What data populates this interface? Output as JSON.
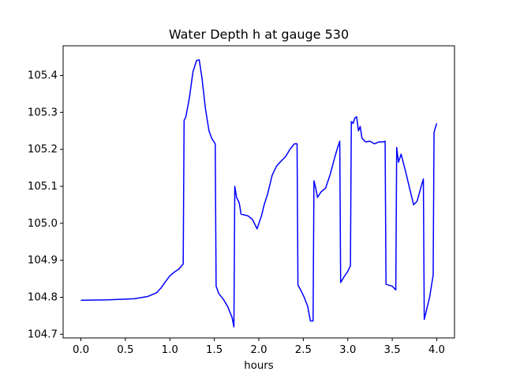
{
  "chart_data": {
    "type": "line",
    "title": "Water Depth h at gauge 530",
    "xlabel": "hours",
    "ylabel": "",
    "xlim": [
      -0.2,
      4.2
    ],
    "ylim": [
      104.69,
      105.48
    ],
    "grid": false,
    "x_ticks": [
      0.0,
      0.5,
      1.0,
      1.5,
      2.0,
      2.5,
      3.0,
      3.5,
      4.0
    ],
    "x_tick_labels": [
      "0.0",
      "0.5",
      "1.0",
      "1.5",
      "2.0",
      "2.5",
      "3.0",
      "3.5",
      "4.0"
    ],
    "y_ticks": [
      104.7,
      104.8,
      104.9,
      105.0,
      105.1,
      105.2,
      105.3,
      105.4
    ],
    "y_tick_labels": [
      "104.7",
      "104.8",
      "104.9",
      "105.0",
      "105.1",
      "105.2",
      "105.3",
      "105.4"
    ],
    "line_color": "#0000ff",
    "series": [
      {
        "x": [
          0.0,
          0.3,
          0.6,
          0.75,
          0.85,
          0.9,
          0.95,
          1.0,
          1.05,
          1.1,
          1.15,
          1.16,
          1.18,
          1.22,
          1.26,
          1.3,
          1.33,
          1.36,
          1.4,
          1.44,
          1.47,
          1.51,
          1.52,
          1.55,
          1.6,
          1.65,
          1.7,
          1.72,
          1.73,
          1.75,
          1.78,
          1.8,
          1.83,
          1.88,
          1.93,
          1.98,
          2.03,
          2.06,
          2.1,
          2.15,
          2.2,
          2.25,
          2.3,
          2.35,
          2.4,
          2.43,
          2.44,
          2.47,
          2.51,
          2.55,
          2.58,
          2.61,
          2.62,
          2.64,
          2.66,
          2.7,
          2.75,
          2.8,
          2.85,
          2.88,
          2.91,
          2.92,
          2.96,
          3.0,
          3.03,
          3.04,
          3.06,
          3.08,
          3.1,
          3.12,
          3.14,
          3.16,
          3.2,
          3.25,
          3.3,
          3.35,
          3.4,
          3.42,
          3.43,
          3.5,
          3.54,
          3.55,
          3.57,
          3.6,
          3.65,
          3.7,
          3.74,
          3.78,
          3.82,
          3.85,
          3.86,
          3.88,
          3.92,
          3.96,
          3.97,
          3.98,
          4.0
        ],
        "y": [
          104.792,
          104.793,
          104.796,
          104.802,
          104.812,
          104.825,
          104.842,
          104.858,
          104.868,
          104.876,
          104.89,
          105.278,
          105.288,
          105.34,
          105.41,
          105.44,
          105.442,
          105.395,
          105.31,
          105.25,
          105.23,
          105.215,
          104.83,
          104.81,
          104.795,
          104.775,
          104.745,
          104.72,
          105.1,
          105.07,
          105.055,
          105.025,
          105.023,
          105.02,
          105.01,
          104.985,
          105.02,
          105.05,
          105.08,
          105.13,
          105.155,
          105.168,
          105.18,
          105.2,
          105.215,
          105.215,
          104.833,
          104.82,
          104.8,
          104.775,
          104.736,
          104.736,
          105.115,
          105.095,
          105.07,
          105.085,
          105.095,
          105.13,
          105.175,
          105.2,
          105.222,
          104.84,
          104.856,
          104.87,
          104.885,
          105.275,
          105.27,
          105.285,
          105.288,
          105.25,
          105.262,
          105.23,
          105.22,
          105.222,
          105.215,
          105.22,
          105.22,
          105.222,
          104.835,
          104.83,
          104.82,
          105.205,
          105.165,
          105.187,
          105.14,
          105.09,
          105.05,
          105.06,
          105.095,
          105.12,
          104.74,
          104.76,
          104.8,
          104.86,
          105.245,
          105.255,
          105.27
        ]
      }
    ]
  }
}
